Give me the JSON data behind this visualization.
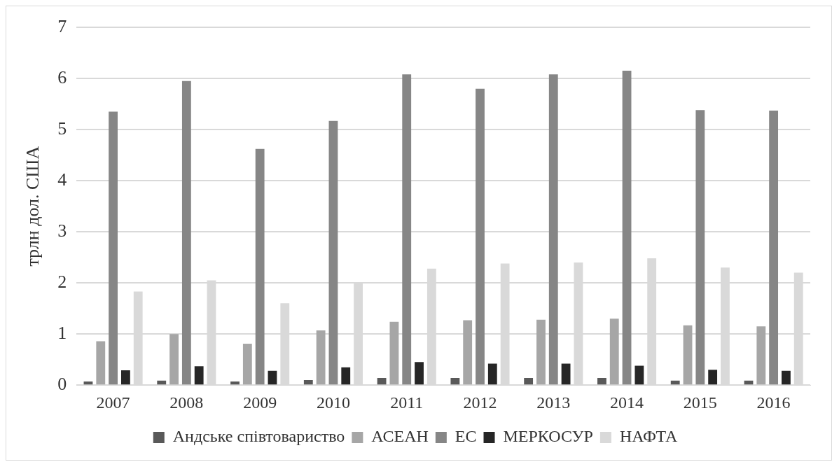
{
  "chart_data": {
    "type": "bar",
    "ylabel": "трлн дол. США",
    "categories": [
      "2007",
      "2008",
      "2009",
      "2010",
      "2011",
      "2012",
      "2013",
      "2014",
      "2015",
      "2016"
    ],
    "series": [
      {
        "name": "Андське співтовариство",
        "color": "#595959",
        "values": [
          0.07,
          0.09,
          0.07,
          0.1,
          0.14,
          0.14,
          0.14,
          0.14,
          0.09,
          0.09
        ]
      },
      {
        "name": "АСЕАН",
        "color": "#a6a6a6",
        "values": [
          0.86,
          1.0,
          0.81,
          1.07,
          1.24,
          1.27,
          1.28,
          1.3,
          1.17,
          1.15
        ]
      },
      {
        "name": "ЕС",
        "color": "#868686",
        "values": [
          5.35,
          5.95,
          4.62,
          5.17,
          6.08,
          5.8,
          6.08,
          6.15,
          5.38,
          5.37
        ]
      },
      {
        "name": "МЕРКОСУР",
        "color": "#262626",
        "values": [
          0.29,
          0.37,
          0.28,
          0.35,
          0.45,
          0.42,
          0.42,
          0.38,
          0.3,
          0.28
        ]
      },
      {
        "name": "НАФТА",
        "color": "#d9d9d9",
        "values": [
          1.83,
          2.05,
          1.6,
          2.0,
          2.28,
          2.38,
          2.4,
          2.48,
          2.3,
          2.2
        ]
      }
    ],
    "ylim": [
      0,
      7
    ],
    "yticks": [
      0,
      1,
      2,
      3,
      4,
      5,
      6,
      7
    ],
    "grid": "y",
    "legend": "bottom"
  }
}
